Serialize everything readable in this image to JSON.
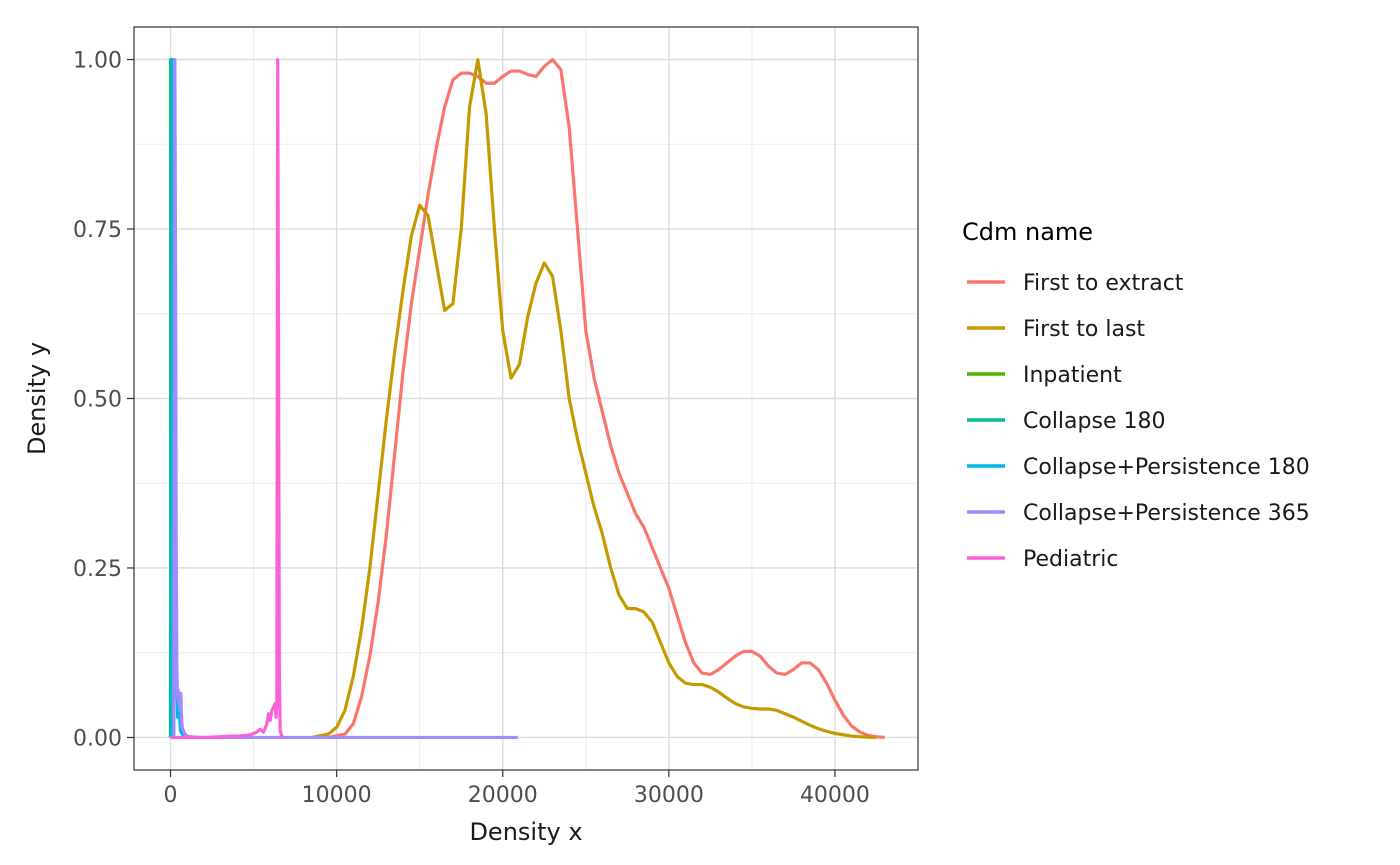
{
  "chart_data": {
    "type": "line",
    "title": "",
    "xlabel": "Density x",
    "ylabel": "Density y",
    "xlim": [
      -2200,
      45000
    ],
    "ylim": [
      -0.048,
      1.048
    ],
    "x_ticks": [
      0,
      10000,
      20000,
      30000,
      40000
    ],
    "x_tick_labels": [
      "0",
      "10000",
      "20000",
      "30000",
      "40000"
    ],
    "y_ticks": [
      0,
      0.25,
      0.5,
      0.75,
      1.0
    ],
    "y_tick_labels": [
      "0.00",
      "0.25",
      "0.50",
      "0.75",
      "1.00"
    ],
    "grid": true,
    "legend": {
      "title": "Cdm name",
      "position": "right"
    },
    "series": [
      {
        "name": "First to extract",
        "color": "#F8766D",
        "x": [
          9500,
          10500,
          11000,
          11500,
          12000,
          12500,
          13000,
          13500,
          14000,
          14500,
          15000,
          15500,
          16000,
          16500,
          17000,
          17500,
          18000,
          18500,
          19000,
          19500,
          20000,
          20500,
          21000,
          21500,
          22000,
          22500,
          23000,
          23500,
          24000,
          24500,
          25000,
          25500,
          26000,
          26500,
          27000,
          27500,
          28000,
          28500,
          29000,
          29500,
          30000,
          30500,
          31000,
          31500,
          32000,
          32500,
          33000,
          33500,
          34000,
          34500,
          35000,
          35500,
          36000,
          36500,
          37000,
          37500,
          38000,
          38500,
          39000,
          39500,
          40000,
          40500,
          41000,
          41500,
          42000,
          42500,
          43000
        ],
        "y": [
          0.0,
          0.005,
          0.02,
          0.06,
          0.12,
          0.2,
          0.3,
          0.42,
          0.54,
          0.64,
          0.72,
          0.8,
          0.87,
          0.93,
          0.97,
          0.98,
          0.98,
          0.975,
          0.965,
          0.965,
          0.975,
          0.983,
          0.983,
          0.978,
          0.975,
          0.99,
          1.0,
          0.985,
          0.9,
          0.75,
          0.6,
          0.53,
          0.48,
          0.43,
          0.39,
          0.36,
          0.33,
          0.31,
          0.28,
          0.25,
          0.22,
          0.18,
          0.14,
          0.11,
          0.095,
          0.093,
          0.1,
          0.11,
          0.12,
          0.127,
          0.127,
          0.12,
          0.105,
          0.095,
          0.093,
          0.1,
          0.11,
          0.11,
          0.1,
          0.08,
          0.055,
          0.033,
          0.017,
          0.008,
          0.003,
          0.001,
          0.0
        ]
      },
      {
        "name": "First to last",
        "color": "#C49A00",
        "x": [
          8500,
          9500,
          10000,
          10500,
          11000,
          11500,
          12000,
          12500,
          13000,
          13500,
          14000,
          14500,
          15000,
          15500,
          16000,
          16500,
          17000,
          17500,
          18000,
          18500,
          19000,
          19500,
          20000,
          20500,
          21000,
          21500,
          22000,
          22500,
          23000,
          23500,
          24000,
          24500,
          25000,
          25500,
          26000,
          26500,
          27000,
          27500,
          28000,
          28500,
          29000,
          29500,
          30000,
          30500,
          31000,
          31500,
          32000,
          32500,
          33000,
          33500,
          34000,
          34500,
          35000,
          35500,
          36000,
          36500,
          37000,
          37500,
          38000,
          38500,
          39000,
          39500,
          40000,
          40500,
          41000,
          41500,
          42000,
          42500
        ],
        "y": [
          0.0,
          0.005,
          0.015,
          0.04,
          0.09,
          0.16,
          0.25,
          0.36,
          0.47,
          0.57,
          0.66,
          0.74,
          0.785,
          0.77,
          0.7,
          0.63,
          0.64,
          0.75,
          0.93,
          1.0,
          0.92,
          0.75,
          0.6,
          0.53,
          0.55,
          0.62,
          0.67,
          0.7,
          0.68,
          0.6,
          0.5,
          0.44,
          0.39,
          0.34,
          0.3,
          0.25,
          0.21,
          0.19,
          0.19,
          0.185,
          0.17,
          0.14,
          0.11,
          0.09,
          0.08,
          0.078,
          0.078,
          0.074,
          0.067,
          0.058,
          0.05,
          0.045,
          0.043,
          0.042,
          0.042,
          0.04,
          0.035,
          0.03,
          0.024,
          0.018,
          0.013,
          0.009,
          0.006,
          0.004,
          0.002,
          0.001,
          0.0005,
          0.0
        ]
      },
      {
        "name": "Inpatient",
        "color": "#53B400",
        "x": [
          0,
          5,
          15,
          25,
          40,
          60,
          80,
          100
        ],
        "y": [
          0.0,
          1.0,
          0.5,
          0.15,
          0.06,
          0.02,
          0.005,
          0.0
        ]
      },
      {
        "name": "Collapse 180",
        "color": "#00C094",
        "x": [
          0,
          20,
          40,
          60,
          80,
          100,
          140,
          200
        ],
        "y": [
          0.0,
          1.0,
          0.9,
          0.4,
          0.12,
          0.05,
          0.01,
          0.0
        ]
      },
      {
        "name": "Collapse+Persistence 180",
        "color": "#00B6EB",
        "x": [
          100,
          160,
          200,
          260,
          300,
          320,
          360,
          400,
          430,
          450,
          500,
          540,
          600,
          700,
          800,
          1000
        ],
        "y": [
          0.0,
          1.0,
          0.5,
          0.3,
          0.15,
          0.1,
          0.08,
          0.06,
          0.03,
          0.05,
          0.04,
          0.035,
          0.01,
          0.005,
          0.003,
          0.0
        ]
      },
      {
        "name": "Collapse+Persistence 365",
        "color": "#A58AFF",
        "x": [
          200,
          260,
          300,
          340,
          380,
          420,
          460,
          500,
          540,
          580,
          620,
          660,
          700,
          800,
          900,
          1000,
          1200,
          1500,
          2000,
          3000,
          5000,
          8000,
          12000,
          16000,
          20900
        ],
        "y": [
          0.0,
          1.0,
          0.7,
          0.3,
          0.1,
          0.06,
          0.07,
          0.05,
          0.06,
          0.04,
          0.065,
          0.03,
          0.015,
          0.008,
          0.004,
          0.002,
          0.001,
          0.0005,
          0.0,
          0.0,
          0.0,
          0.0,
          0.0,
          0.0,
          0.0
        ]
      },
      {
        "name": "Pediatric",
        "color": "#FB61D7",
        "x": [
          0,
          1000,
          2000,
          3000,
          3500,
          4000,
          4500,
          4800,
          5000,
          5200,
          5400,
          5600,
          5800,
          5900,
          6000,
          6100,
          6200,
          6300,
          6350,
          6400,
          6450,
          6500,
          6550,
          6600,
          6700,
          6800
        ],
        "y": [
          0.0,
          0.0,
          0.0,
          0.001,
          0.002,
          0.002,
          0.003,
          0.004,
          0.006,
          0.008,
          0.012,
          0.008,
          0.02,
          0.035,
          0.025,
          0.04,
          0.045,
          0.05,
          0.03,
          0.05,
          1.0,
          0.6,
          0.1,
          0.01,
          0.002,
          0.0
        ]
      }
    ]
  }
}
